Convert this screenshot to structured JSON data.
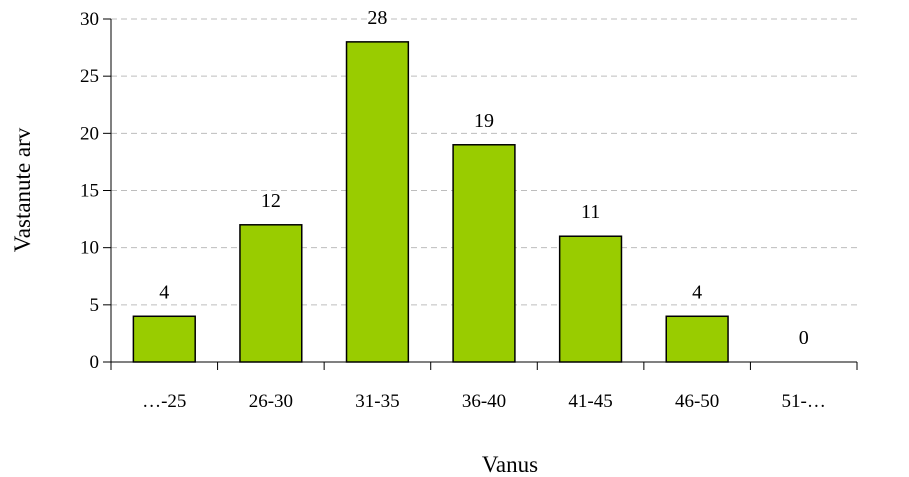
{
  "chart_data": {
    "type": "bar",
    "categories": [
      "…-25",
      "26-30",
      "31-35",
      "36-40",
      "41-45",
      "46-50",
      "51-…"
    ],
    "values": [
      4,
      12,
      28,
      19,
      11,
      4,
      0
    ],
    "title": "",
    "xlabel": "Vanus",
    "ylabel": "Vastanute arv",
    "ylim": [
      0,
      30
    ],
    "yticks": [
      0,
      5,
      10,
      15,
      20,
      25,
      30
    ],
    "grid": true,
    "legend": "none",
    "data_labels": true,
    "colors": {
      "bar_fill": "#99cc00",
      "bar_stroke": "#000000",
      "grid": "#bdbdbd",
      "axis": "#000000"
    }
  }
}
